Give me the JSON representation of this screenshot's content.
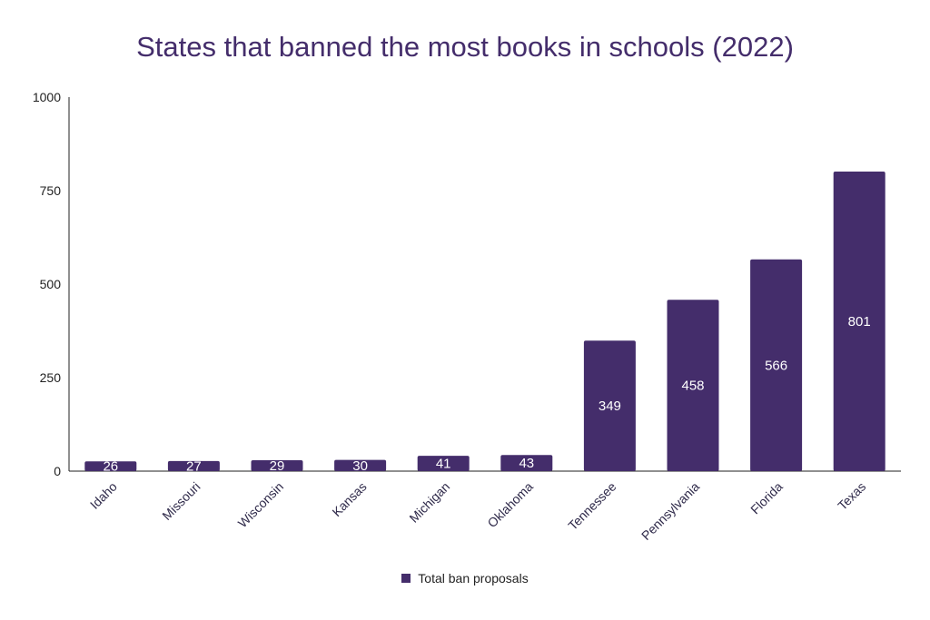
{
  "chart_data": {
    "type": "bar",
    "title": "States that banned the most books in schools (2022)",
    "categories": [
      "Idaho",
      "Missouri",
      "Wisconsin",
      "Kansas",
      "Michigan",
      "Oklahoma",
      "Tennessee",
      "Pennsylvania",
      "Florida",
      "Texas"
    ],
    "series": [
      {
        "name": "Total ban proposals",
        "values": [
          26,
          27,
          29,
          30,
          41,
          43,
          349,
          458,
          566,
          801
        ],
        "color": "#442d6b"
      }
    ],
    "y_ticks": [
      "0",
      "250",
      "500",
      "750",
      "1000"
    ],
    "ylim": [
      0,
      1000
    ],
    "grid": false,
    "legend_position": "bottom-center",
    "data_labels": true
  }
}
